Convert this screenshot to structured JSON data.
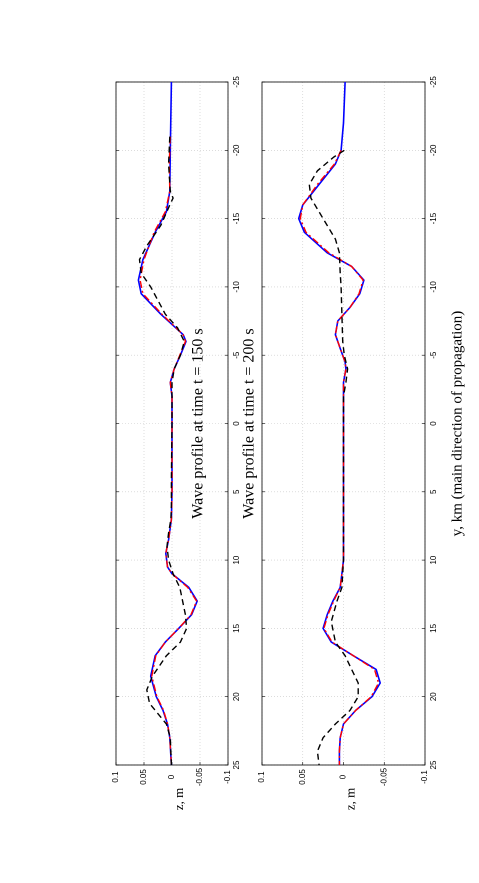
{
  "chart_data": [
    {
      "type": "line",
      "title": "Wave profile at time t = 150 s",
      "xlabel": "",
      "ylabel": "z, m",
      "xlim": [
        -25,
        25
      ],
      "ylim": [
        -0.1,
        0.1
      ],
      "x_ticks": [
        "-25",
        "-20",
        "-15",
        "-10",
        "-5",
        "0",
        "5",
        "10",
        "15",
        "20",
        "25"
      ],
      "y_ticks": [
        "0.1",
        "0.05",
        "0",
        "-0.05",
        "-0.1"
      ],
      "grid": true,
      "series": [
        {
          "color": "#0000ff",
          "style": "solid",
          "points": [
            [
              -25,
              0.001
            ],
            [
              -20,
              0.003
            ],
            [
              -17,
              0.004
            ],
            [
              -15.5,
              0.01
            ],
            [
              -14,
              0.03
            ],
            [
              -12,
              0.052
            ],
            [
              -10.5,
              0.06
            ],
            [
              -9.5,
              0.055
            ],
            [
              -8,
              0.02
            ],
            [
              -6.5,
              -0.02
            ],
            [
              -6,
              -0.025
            ],
            [
              -5,
              -0.015
            ],
            [
              -4,
              -0.004
            ],
            [
              -3,
              0.003
            ],
            [
              -2,
              0
            ],
            [
              0,
              0
            ],
            [
              5,
              0
            ],
            [
              7,
              0.001
            ],
            [
              8.5,
              0.006
            ],
            [
              9.5,
              0.011
            ],
            [
              10.5,
              0.008
            ],
            [
              11,
              0
            ],
            [
              12,
              -0.03
            ],
            [
              13,
              -0.045
            ],
            [
              14,
              -0.035
            ],
            [
              15,
              -0.012
            ],
            [
              16,
              0.012
            ],
            [
              17,
              0.03
            ],
            [
              18.5,
              0.038
            ],
            [
              20,
              0.028
            ],
            [
              21,
              0.016
            ],
            [
              22,
              0.008
            ],
            [
              23,
              0.004
            ],
            [
              25,
              0.001
            ]
          ]
        },
        {
          "color": "#ff0000",
          "style": "dashdot",
          "points": [
            [
              -21,
              0.003
            ],
            [
              -19,
              0.005
            ],
            [
              -17,
              0.004
            ],
            [
              -15.5,
              0.012
            ],
            [
              -14,
              0.032
            ],
            [
              -12,
              0.05
            ],
            [
              -10.5,
              0.057
            ],
            [
              -9.5,
              0.052
            ],
            [
              -8,
              0.018
            ],
            [
              -6.5,
              -0.02
            ],
            [
              -6,
              -0.024
            ],
            [
              -5,
              -0.014
            ],
            [
              -4,
              -0.004
            ],
            [
              -3,
              0.003
            ],
            [
              -2,
              0
            ],
            [
              0,
              0
            ],
            [
              5,
              0
            ],
            [
              7,
              0.001
            ],
            [
              8.5,
              0.006
            ],
            [
              9.5,
              0.011
            ],
            [
              10.5,
              0.008
            ],
            [
              11,
              0
            ],
            [
              12,
              -0.028
            ],
            [
              13,
              -0.044
            ],
            [
              14,
              -0.034
            ],
            [
              15,
              -0.012
            ],
            [
              16,
              0.012
            ],
            [
              17,
              0.029
            ],
            [
              18.5,
              0.036
            ],
            [
              20,
              0.027
            ],
            [
              21,
              0.015
            ],
            [
              22,
              0.008
            ],
            [
              23,
              0.004
            ],
            [
              25,
              0.001
            ]
          ]
        },
        {
          "color": "#000000",
          "style": "dashed",
          "points": [
            [
              -21,
              0.004
            ],
            [
              -19,
              0.006
            ],
            [
              -17,
              0.003
            ],
            [
              -16.5,
              -0.002
            ],
            [
              -16,
              0.004
            ],
            [
              -14.5,
              0.02
            ],
            [
              -13,
              0.045
            ],
            [
              -12,
              0.058
            ],
            [
              -11,
              0.055
            ],
            [
              -10,
              0.038
            ],
            [
              -8,
              0.012
            ],
            [
              -7,
              -0.01
            ],
            [
              -6,
              -0.022
            ],
            [
              -5,
              -0.015
            ],
            [
              -4,
              -0.004
            ],
            [
              -3,
              0
            ],
            [
              -2,
              0
            ],
            [
              0,
              0
            ],
            [
              4,
              0.001
            ],
            [
              6,
              0.001
            ],
            [
              7,
              0.002
            ],
            [
              8,
              0.006
            ],
            [
              9,
              0.009
            ],
            [
              10,
              0.006
            ],
            [
              11,
              -0.002
            ],
            [
              12,
              -0.014
            ],
            [
              14,
              -0.024
            ],
            [
              15,
              -0.026
            ],
            [
              16,
              -0.015
            ],
            [
              17,
              0.01
            ],
            [
              18.5,
              0.035
            ],
            [
              19.5,
              0.045
            ],
            [
              20.5,
              0.04
            ],
            [
              22,
              0.01
            ],
            [
              23,
              0.003
            ],
            [
              25,
              0.001
            ]
          ]
        }
      ]
    },
    {
      "type": "line",
      "title": "Wave profile at time t = 200 s",
      "xlabel": "y, km (main direction of propagation)",
      "ylabel": "z, m",
      "xlim": [
        -25,
        25
      ],
      "ylim": [
        -0.1,
        0.1
      ],
      "x_ticks": [
        "-25",
        "-20",
        "-15",
        "-10",
        "-5",
        "0",
        "5",
        "10",
        "15",
        "20",
        "25"
      ],
      "y_ticks": [
        "0.1",
        "0.05",
        "0",
        "-0.05",
        "-0.1"
      ],
      "grid": true,
      "series": [
        {
          "color": "#0000ff",
          "style": "solid",
          "points": [
            [
              -25,
              -0.002
            ],
            [
              -22,
              0
            ],
            [
              -20,
              0.003
            ],
            [
              -19,
              0.01
            ],
            [
              -17.5,
              0.03
            ],
            [
              -16,
              0.05
            ],
            [
              -15,
              0.055
            ],
            [
              -14,
              0.048
            ],
            [
              -12.5,
              0.02
            ],
            [
              -11.5,
              -0.01
            ],
            [
              -10.5,
              -0.025
            ],
            [
              -9.5,
              -0.02
            ],
            [
              -8.5,
              -0.008
            ],
            [
              -7.5,
              0.007
            ],
            [
              -6.5,
              0.01
            ],
            [
              -5.5,
              0.004
            ],
            [
              -4.5,
              -0.002
            ],
            [
              -4,
              -0.003
            ],
            [
              -3,
              0
            ],
            [
              0,
              0
            ],
            [
              5,
              0
            ],
            [
              8,
              0
            ],
            [
              10,
              0
            ],
            [
              11,
              0.002
            ],
            [
              12,
              0.004
            ],
            [
              13,
              0.013
            ],
            [
              14,
              0.02
            ],
            [
              15,
              0.025
            ],
            [
              16,
              0.015
            ],
            [
              17,
              -0.012
            ],
            [
              18,
              -0.04
            ],
            [
              19,
              -0.045
            ],
            [
              20,
              -0.035
            ],
            [
              21,
              -0.015
            ],
            [
              22,
              0
            ],
            [
              23,
              0.004
            ],
            [
              24,
              0.005
            ],
            [
              25,
              0.005
            ]
          ]
        },
        {
          "color": "#ff0000",
          "style": "dashdot",
          "points": [
            [
              -20,
              0.003
            ],
            [
              -19,
              0.011
            ],
            [
              -17.5,
              0.032
            ],
            [
              -16,
              0.05
            ],
            [
              -15,
              0.053
            ],
            [
              -14,
              0.046
            ],
            [
              -12.5,
              0.018
            ],
            [
              -11.5,
              -0.01
            ],
            [
              -10.5,
              -0.024
            ],
            [
              -9.5,
              -0.019
            ],
            [
              -8.5,
              -0.008
            ],
            [
              -7.5,
              0.007
            ],
            [
              -6.5,
              0.01
            ],
            [
              -5.5,
              0.004
            ],
            [
              -4.5,
              -0.002
            ],
            [
              -4,
              -0.003
            ],
            [
              -3,
              0
            ],
            [
              0,
              0
            ],
            [
              5,
              0
            ],
            [
              8,
              0
            ],
            [
              10,
              0
            ],
            [
              11,
              0.002
            ],
            [
              12,
              0.004
            ],
            [
              13,
              0.012
            ],
            [
              14,
              0.019
            ],
            [
              15,
              0.024
            ],
            [
              16,
              0.014
            ],
            [
              17,
              -0.012
            ],
            [
              18,
              -0.038
            ],
            [
              19,
              -0.043
            ],
            [
              20,
              -0.034
            ],
            [
              21,
              -0.015
            ],
            [
              22,
              0
            ],
            [
              23,
              0.004
            ],
            [
              24,
              0.005
            ],
            [
              25,
              0.005
            ]
          ]
        },
        {
          "color": "#000000",
          "style": "dashed",
          "points": [
            [
              -20,
              -0.001
            ],
            [
              -19.5,
              0.012
            ],
            [
              -18.5,
              0.032
            ],
            [
              -17.5,
              0.042
            ],
            [
              -16.5,
              0.04
            ],
            [
              -15,
              0.025
            ],
            [
              -13.5,
              0.01
            ],
            [
              -12.5,
              0.005
            ],
            [
              -11,
              0.004
            ],
            [
              -10,
              0.003
            ],
            [
              -8,
              0.002
            ],
            [
              -6,
              0.001
            ],
            [
              -5,
              -0.001
            ],
            [
              -4,
              -0.005
            ],
            [
              -3,
              -0.003
            ],
            [
              -2,
              0
            ],
            [
              0,
              0
            ],
            [
              4,
              0
            ],
            [
              8,
              0
            ],
            [
              10,
              0
            ],
            [
              11,
              0.001
            ],
            [
              12,
              0.002
            ],
            [
              13,
              0.008
            ],
            [
              14.5,
              0.015
            ],
            [
              16,
              0.01
            ],
            [
              17,
              -0.002
            ],
            [
              18,
              -0.01
            ],
            [
              19,
              -0.018
            ],
            [
              20,
              -0.018
            ],
            [
              21,
              -0.008
            ],
            [
              22,
              0.01
            ],
            [
              23,
              0.025
            ],
            [
              24,
              0.032
            ],
            [
              25,
              0.03
            ]
          ]
        }
      ]
    }
  ]
}
